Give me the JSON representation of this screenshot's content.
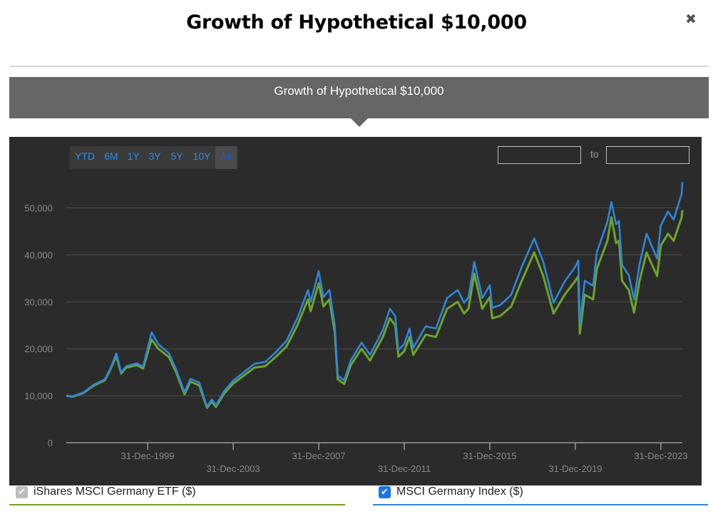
{
  "modal": {
    "title": "Growth of Hypothetical $10,000",
    "close_icon": "close-icon"
  },
  "header_bar": {
    "label": "Growth of Hypothetical $10,000"
  },
  "range_selector": {
    "buttons": [
      "YTD",
      "6M",
      "1Y",
      "3Y",
      "5Y",
      "10Y",
      "All"
    ],
    "active": "All",
    "to_label": "to",
    "from_value": "",
    "to_value": ""
  },
  "legend": {
    "items": [
      {
        "label": "iShares MSCI Germany ETF ($)",
        "checked": true,
        "color": "#6ea52a",
        "check_color": "#bdbdbd"
      },
      {
        "label": "MSCI Germany Index ($)",
        "checked": true,
        "color": "#2f86d9",
        "check_color": "#1a73e8"
      }
    ]
  },
  "chart_data": {
    "type": "line",
    "title": "",
    "xlabel": "",
    "ylabel": "",
    "ylim": [
      0,
      56000
    ],
    "y_ticks": [
      0,
      10000,
      20000,
      30000,
      40000,
      50000
    ],
    "y_tick_labels": [
      "0",
      "10,000",
      "20,000",
      "30,000",
      "40,000",
      "50,000"
    ],
    "x_tick_labels": [
      "31-Dec-1999",
      "31-Dec-2003",
      "31-Dec-2007",
      "31-Dec-2011",
      "31-Dec-2015",
      "31-Dec-2019",
      "31-Dec-2023"
    ],
    "x_range": [
      "1996-03-12",
      "2024-12-31"
    ],
    "grid": true,
    "legend_position": "bottom",
    "series": [
      {
        "name": "iShares MSCI Germany ETF ($)",
        "color": "#6ea52a",
        "points": [
          [
            "1996-03-12",
            10000
          ],
          [
            "1996-06-30",
            9800
          ],
          [
            "1996-12-31",
            10600
          ],
          [
            "1997-06-30",
            12200
          ],
          [
            "1997-12-31",
            13300
          ],
          [
            "1998-03-31",
            15500
          ],
          [
            "1998-07-15",
            18500
          ],
          [
            "1998-10-05",
            14700
          ],
          [
            "1998-12-31",
            16000
          ],
          [
            "1999-06-30",
            16500
          ],
          [
            "1999-10-15",
            15800
          ],
          [
            "2000-03-07",
            22000
          ],
          [
            "2000-06-30",
            20000
          ],
          [
            "2000-12-31",
            18200
          ],
          [
            "2001-04-30",
            15000
          ],
          [
            "2001-09-21",
            10300
          ],
          [
            "2001-12-31",
            13000
          ],
          [
            "2002-05-31",
            12200
          ],
          [
            "2002-10-09",
            7400
          ],
          [
            "2002-12-31",
            8800
          ],
          [
            "2003-03-12",
            7600
          ],
          [
            "2003-07-31",
            10500
          ],
          [
            "2003-12-31",
            12600
          ],
          [
            "2004-06-30",
            14300
          ],
          [
            "2004-12-31",
            16000
          ],
          [
            "2005-06-30",
            16300
          ],
          [
            "2005-12-31",
            18300
          ],
          [
            "2006-06-30",
            20500
          ],
          [
            "2006-12-31",
            25000
          ],
          [
            "2007-06-30",
            30500
          ],
          [
            "2007-08-16",
            28000
          ],
          [
            "2007-12-31",
            34000
          ],
          [
            "2008-03-20",
            29000
          ],
          [
            "2008-06-30",
            30500
          ],
          [
            "2008-09-30",
            23500
          ],
          [
            "2008-11-20",
            13500
          ],
          [
            "2009-03-09",
            12500
          ],
          [
            "2009-06-30",
            16500
          ],
          [
            "2009-12-31",
            20000
          ],
          [
            "2010-05-25",
            17500
          ],
          [
            "2010-12-31",
            22500
          ],
          [
            "2011-04-29",
            26500
          ],
          [
            "2011-07-29",
            25000
          ],
          [
            "2011-09-22",
            18300
          ],
          [
            "2011-12-31",
            19500
          ],
          [
            "2012-03-30",
            22500
          ],
          [
            "2012-06-01",
            18700
          ],
          [
            "2012-12-31",
            23000
          ],
          [
            "2013-06-24",
            22500
          ],
          [
            "2013-12-31",
            28500
          ],
          [
            "2014-06-30",
            30000
          ],
          [
            "2014-10-16",
            27500
          ],
          [
            "2014-12-31",
            28500
          ],
          [
            "2015-04-10",
            36000
          ],
          [
            "2015-08-24",
            28500
          ],
          [
            "2015-12-31",
            31000
          ],
          [
            "2016-02-11",
            26500
          ],
          [
            "2016-06-27",
            27000
          ],
          [
            "2016-12-31",
            29000
          ],
          [
            "2017-06-30",
            34500
          ],
          [
            "2018-01-26",
            40500
          ],
          [
            "2018-06-30",
            35500
          ],
          [
            "2018-12-24",
            27500
          ],
          [
            "2019-06-30",
            31500
          ],
          [
            "2019-12-31",
            34500
          ],
          [
            "2020-02-19",
            35500
          ],
          [
            "2020-03-16",
            23200
          ],
          [
            "2020-06-08",
            31500
          ],
          [
            "2020-10-30",
            30500
          ],
          [
            "2020-12-31",
            37000
          ],
          [
            "2021-06-30",
            43000
          ],
          [
            "2021-09-06",
            48000
          ],
          [
            "2021-11-26",
            42500
          ],
          [
            "2022-01-14",
            43000
          ],
          [
            "2022-03-07",
            34500
          ],
          [
            "2022-06-30",
            32500
          ],
          [
            "2022-09-29",
            27700
          ],
          [
            "2022-12-31",
            34500
          ],
          [
            "2023-04-30",
            40500
          ],
          [
            "2023-10-27",
            35500
          ],
          [
            "2023-12-31",
            42000
          ],
          [
            "2024-04-30",
            44500
          ],
          [
            "2024-08-05",
            43000
          ],
          [
            "2024-12-20",
            48000
          ],
          [
            "2024-12-31",
            49500
          ]
        ]
      },
      {
        "name": "MSCI Germany Index ($)",
        "color": "#2f86d9",
        "points": [
          [
            "1996-03-12",
            10000
          ],
          [
            "1996-06-30",
            9900
          ],
          [
            "1996-12-31",
            10700
          ],
          [
            "1997-06-30",
            12400
          ],
          [
            "1997-12-31",
            13500
          ],
          [
            "1998-03-31",
            15700
          ],
          [
            "1998-07-15",
            19000
          ],
          [
            "1998-10-05",
            15000
          ],
          [
            "1998-12-31",
            16300
          ],
          [
            "1999-06-30",
            16900
          ],
          [
            "1999-10-15",
            16200
          ],
          [
            "2000-03-07",
            23500
          ],
          [
            "2000-06-30",
            21000
          ],
          [
            "2000-12-31",
            19000
          ],
          [
            "2001-04-30",
            15600
          ],
          [
            "2001-09-21",
            10700
          ],
          [
            "2001-12-31",
            13600
          ],
          [
            "2002-05-31",
            12800
          ],
          [
            "2002-10-09",
            7700
          ],
          [
            "2002-12-31",
            9200
          ],
          [
            "2003-03-12",
            8000
          ],
          [
            "2003-07-31",
            11000
          ],
          [
            "2003-12-31",
            13200
          ],
          [
            "2004-06-30",
            15000
          ],
          [
            "2004-12-31",
            16800
          ],
          [
            "2005-06-30",
            17200
          ],
          [
            "2005-12-31",
            19300
          ],
          [
            "2006-06-30",
            21700
          ],
          [
            "2006-12-31",
            26500
          ],
          [
            "2007-06-30",
            32500
          ],
          [
            "2007-08-16",
            30000
          ],
          [
            "2007-12-31",
            36500
          ],
          [
            "2008-03-20",
            31000
          ],
          [
            "2008-06-30",
            32500
          ],
          [
            "2008-09-30",
            25000
          ],
          [
            "2008-11-20",
            14300
          ],
          [
            "2009-03-09",
            13300
          ],
          [
            "2009-06-30",
            17500
          ],
          [
            "2009-12-31",
            21300
          ],
          [
            "2010-05-25",
            18700
          ],
          [
            "2010-12-31",
            24000
          ],
          [
            "2011-04-29",
            28500
          ],
          [
            "2011-07-29",
            27000
          ],
          [
            "2011-09-22",
            19700
          ],
          [
            "2011-12-31",
            21000
          ],
          [
            "2012-03-30",
            24300
          ],
          [
            "2012-06-01",
            20200
          ],
          [
            "2012-12-31",
            24800
          ],
          [
            "2013-06-24",
            24300
          ],
          [
            "2013-12-31",
            30800
          ],
          [
            "2014-06-30",
            32500
          ],
          [
            "2014-10-16",
            29800
          ],
          [
            "2014-12-31",
            30900
          ],
          [
            "2015-04-10",
            38500
          ],
          [
            "2015-08-24",
            30800
          ],
          [
            "2015-12-31",
            33500
          ],
          [
            "2016-02-11",
            28700
          ],
          [
            "2016-06-27",
            29300
          ],
          [
            "2016-12-31",
            31500
          ],
          [
            "2017-06-30",
            37500
          ],
          [
            "2018-01-26",
            43500
          ],
          [
            "2018-06-30",
            38500
          ],
          [
            "2018-12-24",
            29800
          ],
          [
            "2019-06-30",
            34300
          ],
          [
            "2019-12-31",
            37500
          ],
          [
            "2020-02-19",
            38800
          ],
          [
            "2020-03-16",
            25300
          ],
          [
            "2020-06-08",
            34500
          ],
          [
            "2020-10-30",
            33400
          ],
          [
            "2020-12-31",
            40500
          ],
          [
            "2021-06-30",
            47000
          ],
          [
            "2021-09-06",
            51200
          ],
          [
            "2021-11-26",
            46500
          ],
          [
            "2022-01-14",
            47200
          ],
          [
            "2022-03-07",
            37800
          ],
          [
            "2022-06-30",
            35700
          ],
          [
            "2022-09-29",
            30500
          ],
          [
            "2022-12-31",
            38000
          ],
          [
            "2023-04-30",
            44500
          ],
          [
            "2023-10-27",
            39200
          ],
          [
            "2023-12-31",
            46300
          ],
          [
            "2024-04-30",
            49200
          ],
          [
            "2024-08-05",
            47500
          ],
          [
            "2024-12-20",
            53000
          ],
          [
            "2024-12-31",
            55500
          ]
        ]
      }
    ]
  }
}
